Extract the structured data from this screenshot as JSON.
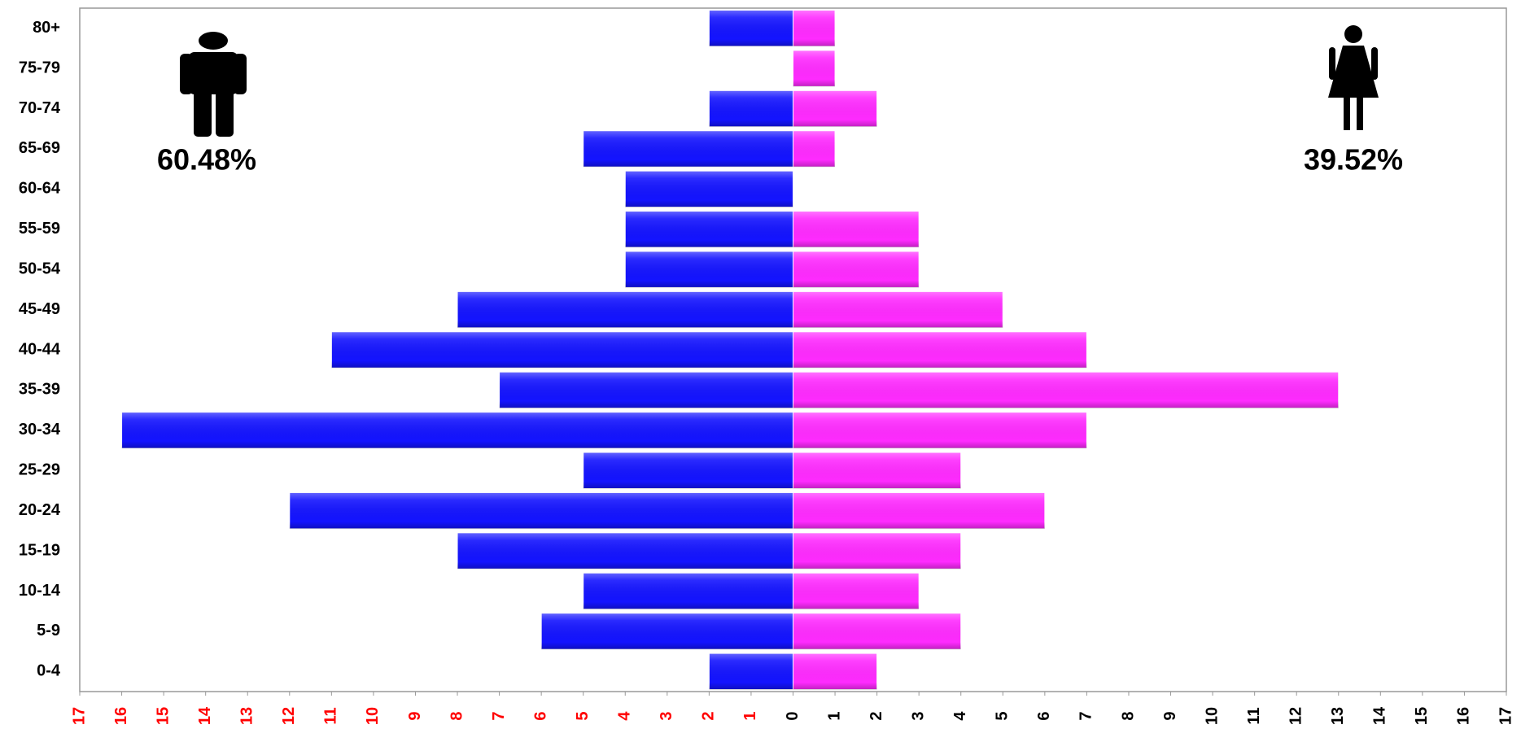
{
  "chart_data": {
    "type": "pyramid",
    "categories": [
      "0-4",
      "5-9",
      "10-14",
      "15-19",
      "20-24",
      "25-29",
      "30-34",
      "35-39",
      "40-44",
      "45-49",
      "50-54",
      "55-59",
      "60-64",
      "65-69",
      "70-74",
      "75-79",
      "80+"
    ],
    "series": [
      {
        "color": "#1414ff",
        "side": "left",
        "values": [
          2,
          6,
          5,
          8,
          12,
          5,
          16,
          7,
          11,
          8,
          4,
          4,
          4,
          5,
          2,
          0,
          2
        ]
      },
      {
        "color": "#ff2bff",
        "side": "right",
        "values": [
          2,
          4,
          3,
          4,
          6,
          4,
          7,
          13,
          7,
          5,
          3,
          3,
          0,
          1,
          2,
          1,
          1
        ]
      }
    ],
    "xlim": [
      -17,
      17
    ],
    "xticks": [
      {
        "value": -17,
        "label": "17"
      },
      {
        "value": -16,
        "label": "16"
      },
      {
        "value": -15,
        "label": "15"
      },
      {
        "value": -14,
        "label": "14"
      },
      {
        "value": -13,
        "label": "13"
      },
      {
        "value": -12,
        "label": "12"
      },
      {
        "value": -11,
        "label": "11"
      },
      {
        "value": -10,
        "label": "10"
      },
      {
        "value": -9,
        "label": "9"
      },
      {
        "value": -8,
        "label": "8"
      },
      {
        "value": -7,
        "label": "7"
      },
      {
        "value": -6,
        "label": "6"
      },
      {
        "value": -5,
        "label": "5"
      },
      {
        "value": -4,
        "label": "4"
      },
      {
        "value": -3,
        "label": "3"
      },
      {
        "value": -2,
        "label": "2"
      },
      {
        "value": -1,
        "label": "1"
      },
      0,
      1,
      2,
      3,
      4,
      5,
      6,
      7,
      8,
      9,
      10,
      11,
      12,
      13,
      14,
      15,
      16,
      17
    ],
    "annotations": [
      "60.48%",
      "39.52%"
    ]
  }
}
